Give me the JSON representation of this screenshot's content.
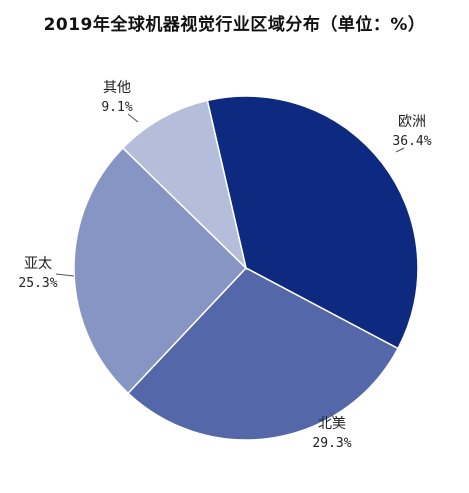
{
  "chart_data": {
    "type": "pie",
    "title": "2019年全球机器视觉行业区域分布（单位：%）",
    "slices": [
      {
        "label": "欧洲",
        "value": 36.4,
        "value_text": "36.4%",
        "color": "#0d2a80"
      },
      {
        "label": "北美",
        "value": 29.3,
        "value_text": "29.3%",
        "color": "#5367a9"
      },
      {
        "label": "亚太",
        "value": 25.3,
        "value_text": "25.3%",
        "color": "#8695c3"
      },
      {
        "label": "其他",
        "value": 9.1,
        "value_text": "9.1%",
        "color": "#b4bedb"
      }
    ]
  }
}
